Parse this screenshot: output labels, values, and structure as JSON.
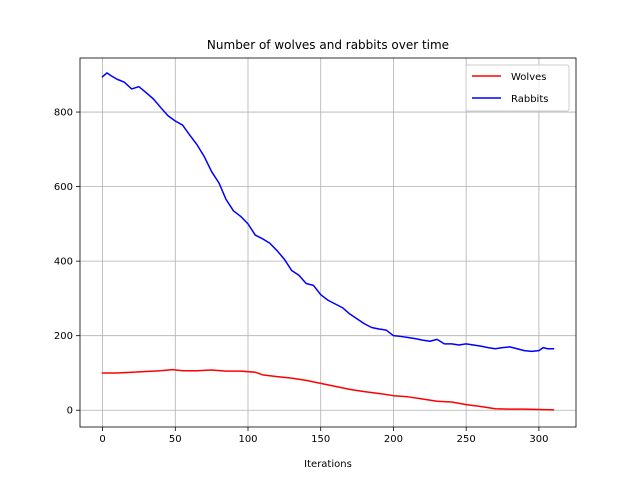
{
  "chart_data": {
    "type": "line",
    "title": "Number of wolves and rabbits over time",
    "xlabel": "Iterations",
    "ylabel": "",
    "xlim": [
      -15.5,
      325.5
    ],
    "ylim": [
      -45,
      945
    ],
    "xticks": [
      0,
      50,
      100,
      150,
      200,
      250,
      300
    ],
    "yticks": [
      0,
      200,
      400,
      600,
      800
    ],
    "grid": true,
    "legend_position": "upper-right",
    "series": [
      {
        "name": "Wolves",
        "color": "#ff0000",
        "points": [
          [
            0,
            100
          ],
          [
            10,
            100
          ],
          [
            20,
            102
          ],
          [
            30,
            104
          ],
          [
            40,
            106
          ],
          [
            48,
            109
          ],
          [
            55,
            106
          ],
          [
            65,
            106
          ],
          [
            75,
            108
          ],
          [
            85,
            105
          ],
          [
            95,
            105
          ],
          [
            105,
            102
          ],
          [
            110,
            95
          ],
          [
            120,
            90
          ],
          [
            130,
            86
          ],
          [
            140,
            80
          ],
          [
            150,
            72
          ],
          [
            160,
            64
          ],
          [
            170,
            56
          ],
          [
            180,
            50
          ],
          [
            190,
            45
          ],
          [
            200,
            39
          ],
          [
            210,
            36
          ],
          [
            220,
            30
          ],
          [
            230,
            24
          ],
          [
            240,
            22
          ],
          [
            250,
            15
          ],
          [
            260,
            10
          ],
          [
            270,
            4
          ],
          [
            280,
            3
          ],
          [
            290,
            3
          ],
          [
            300,
            2
          ],
          [
            310,
            1
          ]
        ]
      },
      {
        "name": "Rabbits",
        "color": "#0000ff",
        "points": [
          [
            0,
            895
          ],
          [
            3,
            905
          ],
          [
            6,
            897
          ],
          [
            10,
            888
          ],
          [
            15,
            880
          ],
          [
            20,
            862
          ],
          [
            25,
            868
          ],
          [
            30,
            852
          ],
          [
            35,
            835
          ],
          [
            40,
            812
          ],
          [
            45,
            790
          ],
          [
            50,
            776
          ],
          [
            55,
            765
          ],
          [
            60,
            738
          ],
          [
            65,
            712
          ],
          [
            70,
            680
          ],
          [
            75,
            640
          ],
          [
            80,
            610
          ],
          [
            85,
            565
          ],
          [
            90,
            535
          ],
          [
            95,
            520
          ],
          [
            100,
            500
          ],
          [
            105,
            470
          ],
          [
            110,
            460
          ],
          [
            115,
            448
          ],
          [
            120,
            428
          ],
          [
            125,
            405
          ],
          [
            130,
            375
          ],
          [
            135,
            362
          ],
          [
            140,
            340
          ],
          [
            145,
            335
          ],
          [
            150,
            310
          ],
          [
            155,
            295
          ],
          [
            160,
            285
          ],
          [
            165,
            275
          ],
          [
            170,
            258
          ],
          [
            175,
            245
          ],
          [
            180,
            232
          ],
          [
            185,
            222
          ],
          [
            190,
            218
          ],
          [
            195,
            215
          ],
          [
            200,
            200
          ],
          [
            205,
            198
          ],
          [
            210,
            195
          ],
          [
            215,
            192
          ],
          [
            220,
            188
          ],
          [
            225,
            185
          ],
          [
            230,
            190
          ],
          [
            235,
            178
          ],
          [
            240,
            178
          ],
          [
            245,
            175
          ],
          [
            250,
            178
          ],
          [
            255,
            175
          ],
          [
            260,
            172
          ],
          [
            265,
            168
          ],
          [
            270,
            165
          ],
          [
            275,
            168
          ],
          [
            280,
            170
          ],
          [
            285,
            165
          ],
          [
            290,
            160
          ],
          [
            295,
            158
          ],
          [
            300,
            160
          ],
          [
            303,
            168
          ],
          [
            306,
            165
          ],
          [
            310,
            165
          ]
        ]
      }
    ]
  }
}
